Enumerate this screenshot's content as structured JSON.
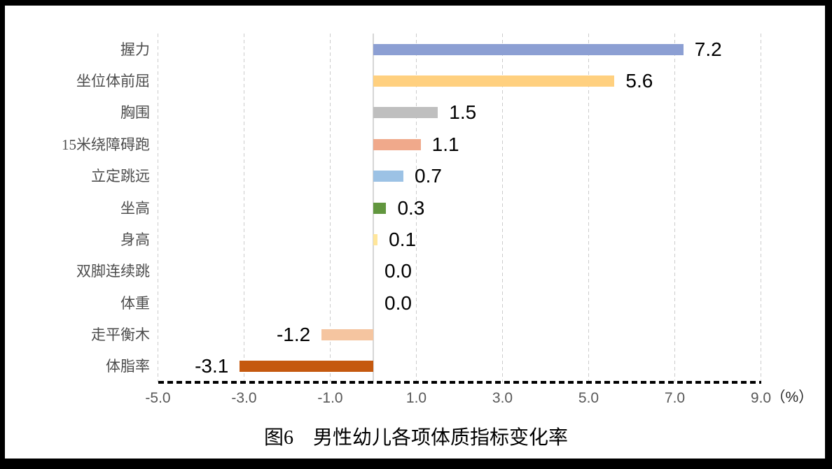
{
  "chart_data": {
    "type": "bar",
    "orientation": "horizontal",
    "title": "图6　男性幼儿各项体质指标变化率",
    "categories": [
      "握力",
      "坐位体前屈",
      "胸围",
      "15米绕障碍跑",
      "立定跳远",
      "坐高",
      "身高",
      "双脚连续跳",
      "体重",
      "走平衡木",
      "体脂率"
    ],
    "values": [
      7.2,
      5.6,
      1.5,
      1.1,
      0.7,
      0.3,
      0.1,
      0.0,
      0.0,
      -1.2,
      -3.1
    ],
    "value_labels": [
      "7.2",
      "5.6",
      "1.5",
      "1.1",
      "0.7",
      "0.3",
      "0.1",
      "0.0",
      "0.0",
      "-1.2",
      "-3.1"
    ],
    "bar_colors": [
      "#8C9FD3",
      "#FFD07F",
      "#BFBFBF",
      "#F0A98B",
      "#9CC2E5",
      "#61963E",
      "#FFE69B",
      null,
      null,
      "#F5C5A0",
      "#C5590F"
    ],
    "xlim": [
      -5.0,
      9.0
    ],
    "x_ticks": [
      -5.0,
      -3.0,
      -1.0,
      1.0,
      3.0,
      5.0,
      7.0,
      9.0
    ],
    "x_tick_labels": [
      "-5.0",
      "-3.0",
      "-1.0",
      "1.0",
      "3.0",
      "5.0",
      "7.0",
      "9.0"
    ],
    "x_axis_unit": "（%）",
    "grid": "vertical-dashed-at-ticks",
    "zero_line": true,
    "legend": "none",
    "style": {
      "gridline": "#CCCCCC",
      "zero_line": "#D6D6D6",
      "baseline": "#000000",
      "tick_text": "#595959",
      "category_text": "#4D4D4D",
      "value_text": "#000000",
      "title_text": "#000000",
      "frame": "#000000",
      "background": "#FFFFFF"
    }
  }
}
